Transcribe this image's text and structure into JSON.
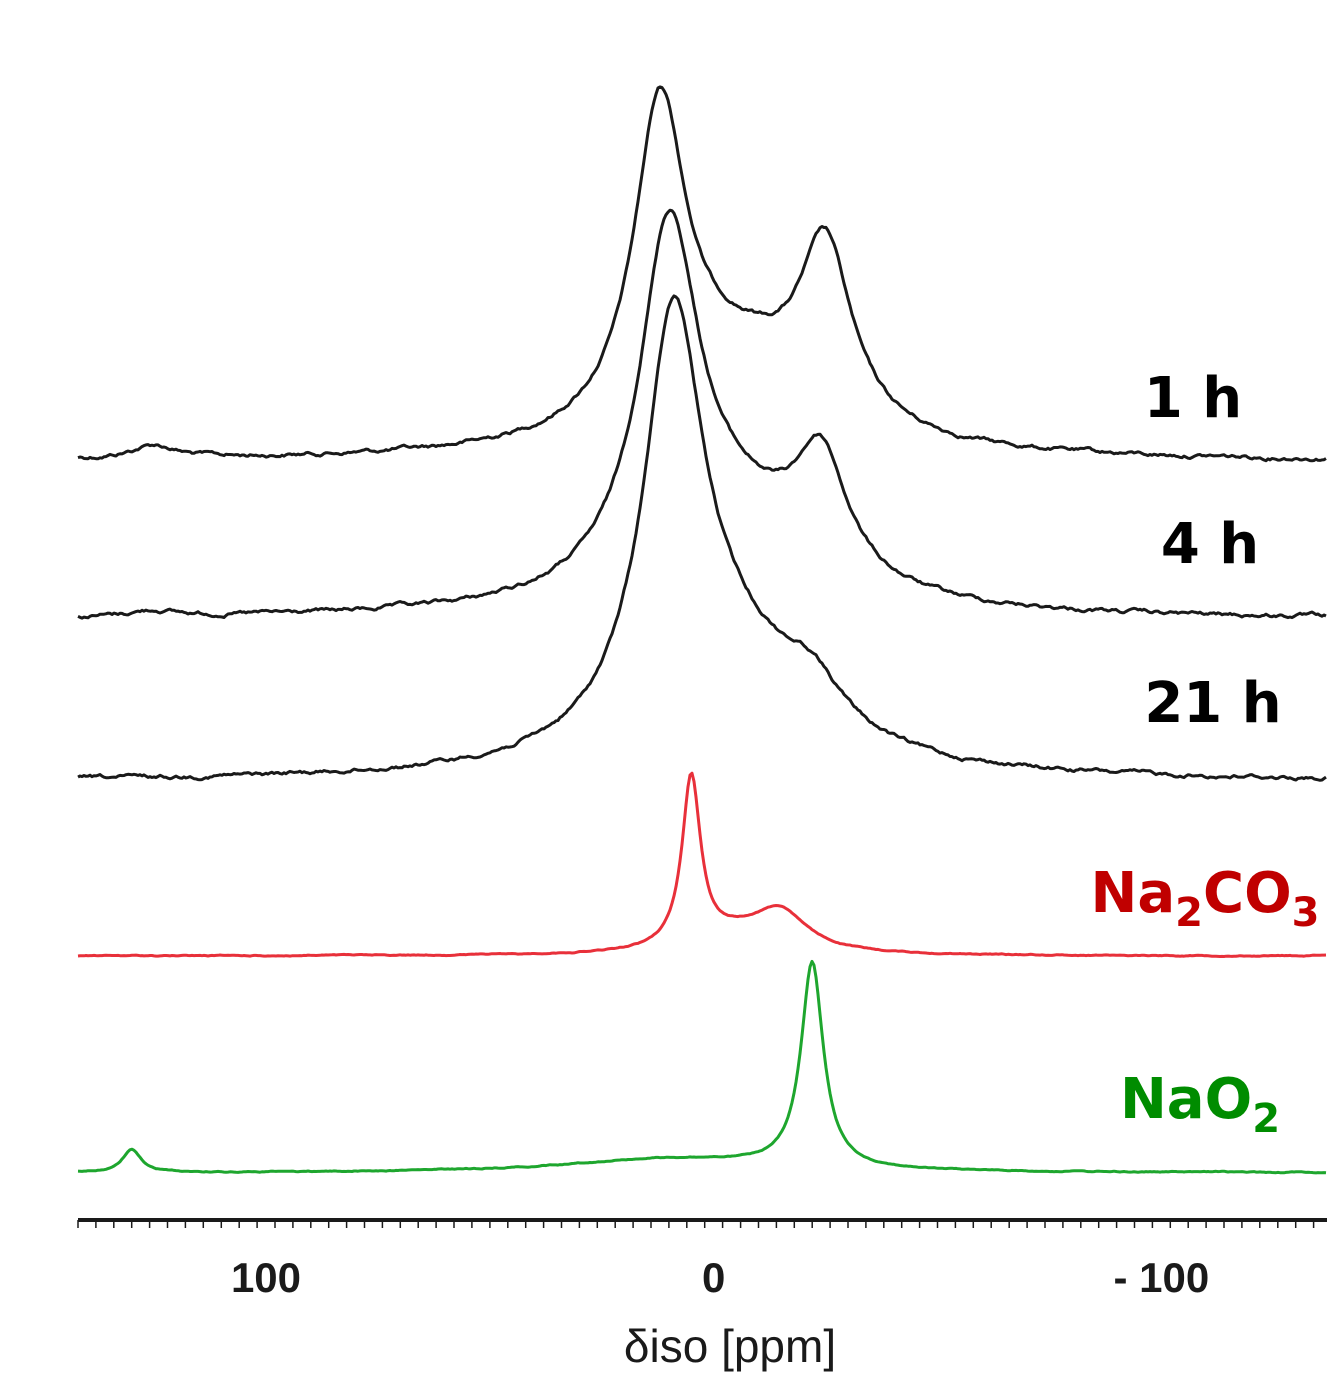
{
  "chart_data": {
    "type": "line",
    "xlabel": "δiso [ppm]",
    "xlim": [
      142,
      -137
    ],
    "x_reversed": true,
    "x_ticks": [
      {
        "value": 100,
        "label": "100"
      },
      {
        "value": 0,
        "label": "0"
      },
      {
        "value": -100,
        "label": "- 100"
      }
    ],
    "minor_tick_step": 20,
    "tick_step_small": 4,
    "grid": false,
    "stacked": true,
    "series": [
      {
        "id": "s1h",
        "name_parts": [
          {
            "t": "1 h"
          }
        ],
        "color": "#1a1a1a",
        "noise": 1.0,
        "peaks": [
          {
            "pos": 125,
            "amp": 13,
            "w": 6
          },
          {
            "pos": 12,
            "amp": 310,
            "w": 7
          },
          {
            "pos": -25,
            "amp": 170,
            "w": 7
          },
          {
            "pos": -5,
            "amp": 95,
            "w": 22
          }
        ]
      },
      {
        "id": "s4h",
        "name_parts": [
          {
            "t": "4 h"
          }
        ],
        "color": "#1a1a1a",
        "noise": 1.0,
        "peaks": [
          {
            "pos": 125,
            "amp": 6,
            "w": 6
          },
          {
            "pos": 10,
            "amp": 345,
            "w": 8
          },
          {
            "pos": -24,
            "amp": 115,
            "w": 7
          },
          {
            "pos": -5,
            "amp": 90,
            "w": 22
          }
        ]
      },
      {
        "id": "s21h",
        "name_parts": [
          {
            "t": "21 h"
          }
        ],
        "color": "#1a1a1a",
        "noise": 1.0,
        "peaks": [
          {
            "pos": 9,
            "amp": 400,
            "w": 8
          },
          {
            "pos": -22,
            "amp": 40,
            "w": 8
          },
          {
            "pos": -4,
            "amp": 110,
            "w": 22
          }
        ]
      },
      {
        "id": "na2co3",
        "name_parts": [
          {
            "t": "Na"
          },
          {
            "t": "2",
            "sub": true
          },
          {
            "t": "CO"
          },
          {
            "t": "3",
            "sub": true
          }
        ],
        "color": "#e8303a",
        "noise": 0.25,
        "peaks": [
          {
            "pos": 5,
            "amp": 170,
            "w": 2.5
          },
          {
            "pos": -15,
            "amp": 36,
            "w": 7
          },
          {
            "pos": -6,
            "amp": 18,
            "w": 12
          }
        ]
      },
      {
        "id": "nao2",
        "name_parts": [
          {
            "t": "NaO"
          },
          {
            "t": "2",
            "sub": true
          }
        ],
        "color": "#1ea62e",
        "noise": 0.25,
        "peaks": [
          {
            "pos": 130,
            "amp": 23,
            "w": 2.5
          },
          {
            "pos": -22,
            "amp": 205,
            "w": 3
          },
          {
            "pos": 10,
            "amp": 14,
            "w": 28
          }
        ]
      }
    ]
  },
  "style": {
    "axis_color": "#1a1a1a",
    "label_colors": {
      "s1h": "#000000",
      "s4h": "#000000",
      "s21h": "#000000",
      "na2co3": "#c00000",
      "nao2": "#008c00"
    }
  }
}
